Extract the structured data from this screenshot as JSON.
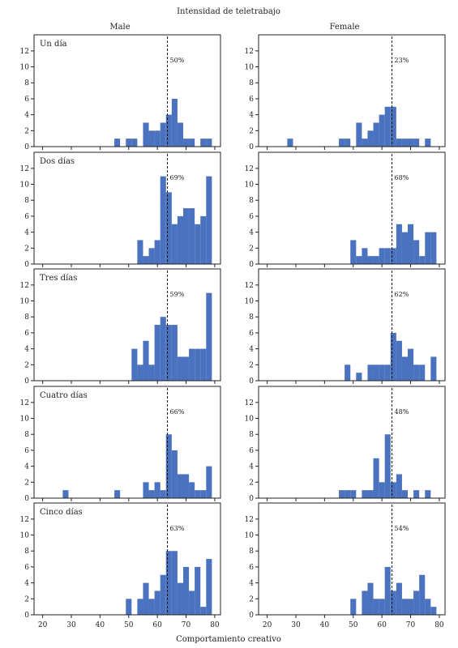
{
  "chart_data": {
    "type": "bar",
    "title": "Intensidad de teletrabajo",
    "xlabel": "Comportamiento creativo",
    "ylabel": "",
    "columns": [
      "Male",
      "Female"
    ],
    "rows": [
      "Un día",
      "Dos días",
      "Tres días",
      "Cuatro días",
      "Cinco días"
    ],
    "xlim": [
      17,
      82
    ],
    "ylim": [
      0,
      13
    ],
    "xticks": [
      20,
      30,
      40,
      50,
      60,
      70,
      80
    ],
    "yticks": [
      0,
      2,
      4,
      6,
      8,
      10,
      12
    ],
    "bin_width": 2,
    "bin_start": 17,
    "reference_line_x": 63.5,
    "grid": false,
    "color": "#4a72bf",
    "panels": [
      {
        "row": "Un día",
        "column": "Male",
        "percent": "50%",
        "bins": [
          [
            45,
            1
          ],
          [
            49,
            1
          ],
          [
            51,
            1
          ],
          [
            55,
            3
          ],
          [
            57,
            2
          ],
          [
            59,
            2
          ],
          [
            61,
            3
          ],
          [
            63,
            4
          ],
          [
            65,
            6
          ],
          [
            67,
            3
          ],
          [
            69,
            1
          ],
          [
            71,
            1
          ],
          [
            75,
            1
          ],
          [
            77,
            1
          ]
        ]
      },
      {
        "row": "Un día",
        "column": "Female",
        "percent": "23%",
        "bins": [
          [
            27,
            1
          ],
          [
            45,
            1
          ],
          [
            47,
            1
          ],
          [
            51,
            3
          ],
          [
            53,
            1
          ],
          [
            55,
            2
          ],
          [
            57,
            3
          ],
          [
            59,
            4
          ],
          [
            61,
            5
          ],
          [
            63,
            5
          ],
          [
            65,
            1
          ],
          [
            67,
            1
          ],
          [
            69,
            1
          ],
          [
            71,
            1
          ],
          [
            75,
            1
          ]
        ]
      },
      {
        "row": "Dos días",
        "column": "Male",
        "percent": "69%",
        "bins": [
          [
            53,
            3
          ],
          [
            55,
            1
          ],
          [
            57,
            2
          ],
          [
            59,
            3
          ],
          [
            61,
            11
          ],
          [
            63,
            9
          ],
          [
            65,
            5
          ],
          [
            67,
            6
          ],
          [
            69,
            7
          ],
          [
            71,
            7
          ],
          [
            73,
            5
          ],
          [
            75,
            6
          ],
          [
            77,
            11
          ]
        ]
      },
      {
        "row": "Dos días",
        "column": "Female",
        "percent": "68%",
        "bins": [
          [
            49,
            3
          ],
          [
            51,
            1
          ],
          [
            53,
            2
          ],
          [
            55,
            1
          ],
          [
            57,
            1
          ],
          [
            59,
            2
          ],
          [
            61,
            2
          ],
          [
            63,
            2
          ],
          [
            65,
            5
          ],
          [
            67,
            4
          ],
          [
            69,
            5
          ],
          [
            71,
            3
          ],
          [
            73,
            1
          ],
          [
            75,
            4
          ],
          [
            77,
            4
          ]
        ]
      },
      {
        "row": "Tres días",
        "column": "Male",
        "percent": "59%",
        "bins": [
          [
            51,
            4
          ],
          [
            53,
            2
          ],
          [
            55,
            5
          ],
          [
            57,
            2
          ],
          [
            59,
            7
          ],
          [
            61,
            8
          ],
          [
            63,
            7
          ],
          [
            65,
            7
          ],
          [
            67,
            3
          ],
          [
            69,
            3
          ],
          [
            71,
            4
          ],
          [
            73,
            4
          ],
          [
            75,
            4
          ],
          [
            77,
            11
          ]
        ]
      },
      {
        "row": "Tres días",
        "column": "Female",
        "percent": "62%",
        "bins": [
          [
            47,
            2
          ],
          [
            51,
            1
          ],
          [
            55,
            2
          ],
          [
            57,
            2
          ],
          [
            59,
            2
          ],
          [
            61,
            2
          ],
          [
            63,
            6
          ],
          [
            65,
            5
          ],
          [
            67,
            3
          ],
          [
            69,
            4
          ],
          [
            71,
            2
          ],
          [
            73,
            2
          ],
          [
            77,
            3
          ]
        ]
      },
      {
        "row": "Cuatro días",
        "column": "Male",
        "percent": "66%",
        "bins": [
          [
            27,
            1
          ],
          [
            45,
            1
          ],
          [
            55,
            2
          ],
          [
            57,
            1
          ],
          [
            59,
            2
          ],
          [
            61,
            1
          ],
          [
            63,
            8
          ],
          [
            65,
            6
          ],
          [
            67,
            3
          ],
          [
            69,
            3
          ],
          [
            71,
            2
          ],
          [
            73,
            1
          ],
          [
            75,
            1
          ],
          [
            77,
            4
          ]
        ]
      },
      {
        "row": "Cuatro días",
        "column": "Female",
        "percent": "48%",
        "bins": [
          [
            45,
            1
          ],
          [
            47,
            1
          ],
          [
            49,
            1
          ],
          [
            53,
            1
          ],
          [
            55,
            1
          ],
          [
            57,
            5
          ],
          [
            59,
            2
          ],
          [
            61,
            8
          ],
          [
            63,
            2
          ],
          [
            65,
            3
          ],
          [
            67,
            1
          ],
          [
            71,
            1
          ],
          [
            75,
            1
          ]
        ]
      },
      {
        "row": "Cinco días",
        "column": "Male",
        "percent": "63%",
        "bins": [
          [
            49,
            2
          ],
          [
            53,
            2
          ],
          [
            55,
            4
          ],
          [
            57,
            2
          ],
          [
            59,
            3
          ],
          [
            61,
            5
          ],
          [
            63,
            8
          ],
          [
            65,
            8
          ],
          [
            67,
            4
          ],
          [
            69,
            6
          ],
          [
            71,
            3
          ],
          [
            73,
            6
          ],
          [
            75,
            1
          ],
          [
            77,
            7
          ]
        ]
      },
      {
        "row": "Cinco días",
        "column": "Female",
        "percent": "54%",
        "bins": [
          [
            49,
            2
          ],
          [
            53,
            3
          ],
          [
            55,
            4
          ],
          [
            57,
            2
          ],
          [
            59,
            2
          ],
          [
            61,
            6
          ],
          [
            63,
            3
          ],
          [
            65,
            4
          ],
          [
            67,
            2
          ],
          [
            69,
            2
          ],
          [
            71,
            3
          ],
          [
            73,
            5
          ],
          [
            75,
            2
          ],
          [
            77,
            1
          ]
        ]
      }
    ]
  }
}
